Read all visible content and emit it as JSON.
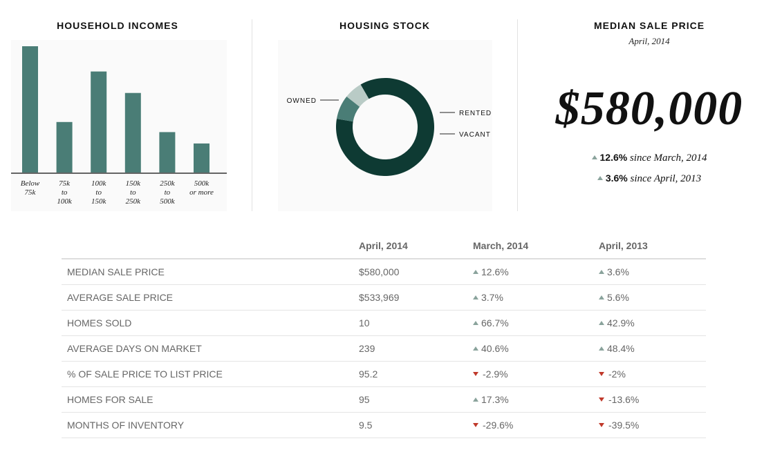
{
  "income_panel": {
    "title": "HOUSEHOLD INCOMES"
  },
  "housing_panel": {
    "title": "HOUSING STOCK"
  },
  "median_panel": {
    "title": "MEDIAN SALE PRICE",
    "subtitle": "April, 2014",
    "price": "$580,000",
    "changes": [
      {
        "value": "12.6%",
        "text": "since March, 2014",
        "direction": "up"
      },
      {
        "value": "3.6%",
        "text": "since April, 2013",
        "direction": "up"
      }
    ]
  },
  "colors": {
    "bar": "#4a7d76",
    "owned": "#0e3a33",
    "rented": "#4a7d76",
    "vacant": "#b9cbc6",
    "up": "#8aa39c",
    "down": "#c0392b"
  },
  "chart_data": [
    {
      "type": "bar",
      "title": "HOUSEHOLD INCOMES",
      "categories": [
        [
          "Below",
          "75k"
        ],
        [
          "75k",
          "to",
          "100k"
        ],
        [
          "100k",
          "to",
          "150k"
        ],
        [
          "150k",
          "to",
          "250k"
        ],
        [
          "250k",
          "to",
          "500k"
        ],
        [
          "500k",
          "or more"
        ]
      ],
      "values": [
        100,
        40,
        80,
        63,
        32,
        23
      ],
      "ylim": [
        0,
        100
      ],
      "grid": false
    },
    {
      "type": "pie",
      "title": "HOUSING STOCK",
      "donut": true,
      "slices": [
        {
          "label": "OWNED",
          "value": 86
        },
        {
          "label": "RENTED",
          "value": 8
        },
        {
          "label": "VACANT",
          "value": 6
        }
      ]
    }
  ],
  "table": {
    "headers": [
      "",
      "April, 2014",
      "March, 2014",
      "April, 2013"
    ],
    "rows": [
      {
        "label": "MEDIAN SALE PRICE",
        "value": "$580,000",
        "mar": "12.6%",
        "mar_dir": "up",
        "apr": "3.6%",
        "apr_dir": "up"
      },
      {
        "label": "AVERAGE SALE PRICE",
        "value": "$533,969",
        "mar": "3.7%",
        "mar_dir": "up",
        "apr": "5.6%",
        "apr_dir": "up"
      },
      {
        "label": "HOMES SOLD",
        "value": "10",
        "mar": "66.7%",
        "mar_dir": "up",
        "apr": "42.9%",
        "apr_dir": "up"
      },
      {
        "label": "AVERAGE DAYS ON MARKET",
        "value": "239",
        "mar": "40.6%",
        "mar_dir": "up",
        "apr": "48.4%",
        "apr_dir": "up"
      },
      {
        "label": "% OF SALE PRICE TO LIST PRICE",
        "value": "95.2",
        "mar": "-2.9%",
        "mar_dir": "down",
        "apr": "-2%",
        "apr_dir": "down"
      },
      {
        "label": "HOMES FOR SALE",
        "value": "95",
        "mar": "17.3%",
        "mar_dir": "up",
        "apr": "-13.6%",
        "apr_dir": "down"
      },
      {
        "label": "MONTHS OF INVENTORY",
        "value": "9.5",
        "mar": "-29.6%",
        "mar_dir": "down",
        "apr": "-39.5%",
        "apr_dir": "down"
      }
    ]
  }
}
